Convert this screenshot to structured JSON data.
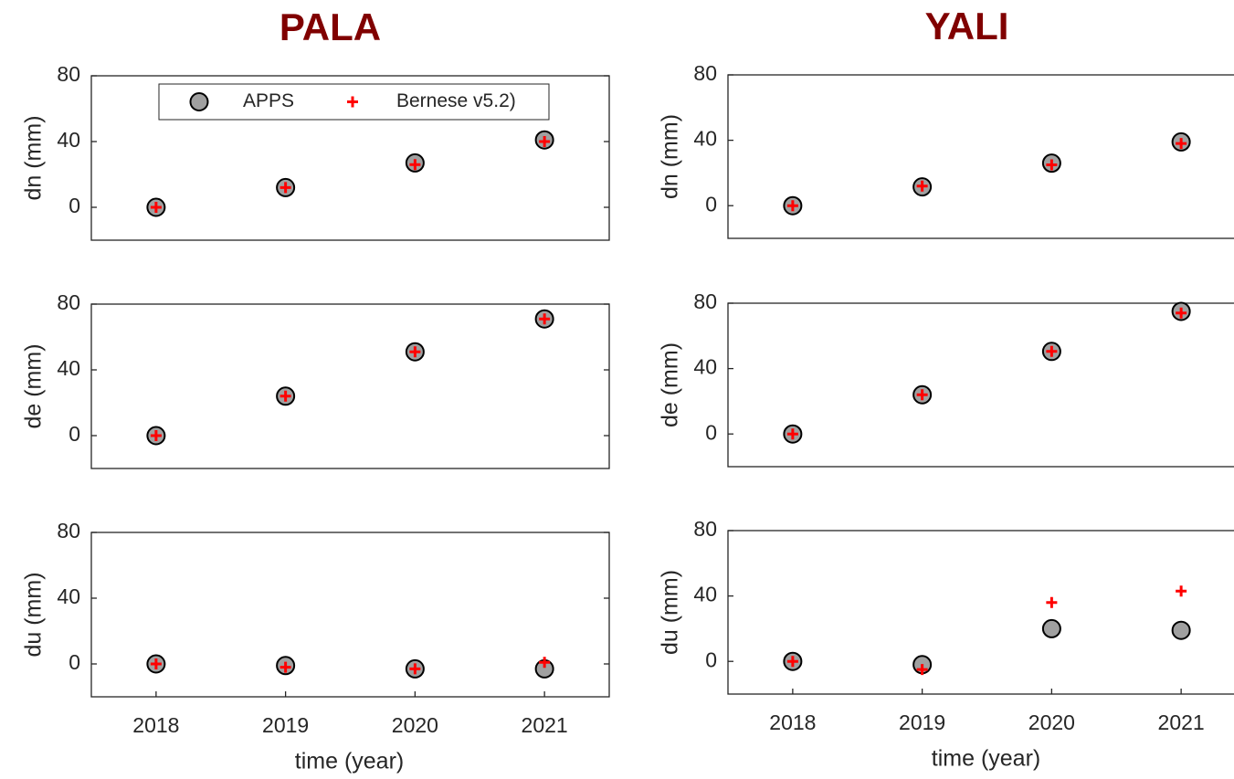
{
  "chart_data": [
    {
      "type": "scatter",
      "title": "PALA",
      "ylabel": "dn (mm)",
      "x": [
        2018,
        2019,
        2020,
        2021
      ],
      "xlim": [
        2017.5,
        2021.5
      ],
      "ylim": [
        -20,
        80
      ],
      "yticks": [
        0,
        40,
        80
      ],
      "legend": "north",
      "series": [
        {
          "name": "APPS",
          "color": "#a0a0a0",
          "values": [
            0,
            12,
            27,
            41
          ]
        },
        {
          "name": "Bernese v5.2)",
          "color": "#ff0000",
          "values": [
            0,
            12,
            26,
            40
          ]
        }
      ]
    },
    {
      "type": "scatter",
      "title": "YALI",
      "ylabel": "dn (mm)",
      "x": [
        2018,
        2019,
        2020,
        2021
      ],
      "xlim": [
        2017.5,
        2021.5
      ],
      "ylim": [
        -20,
        80
      ],
      "yticks": [
        0,
        40,
        80
      ],
      "series": [
        {
          "name": "APPS",
          "color": "#a0a0a0",
          "values": [
            0,
            11.5,
            26,
            39
          ]
        },
        {
          "name": "Bernese v5.2)",
          "color": "#ff0000",
          "values": [
            0,
            12,
            25,
            38
          ]
        }
      ]
    },
    {
      "type": "scatter",
      "ylabel": "de (mm)",
      "x": [
        2018,
        2019,
        2020,
        2021
      ],
      "xlim": [
        2017.5,
        2021.5
      ],
      "ylim": [
        -20,
        80
      ],
      "yticks": [
        0,
        40,
        80
      ],
      "series": [
        {
          "name": "APPS",
          "color": "#a0a0a0",
          "values": [
            0,
            24,
            51,
            71
          ]
        },
        {
          "name": "Bernese v5.2)",
          "color": "#ff0000",
          "values": [
            0,
            24,
            51,
            71
          ]
        }
      ]
    },
    {
      "type": "scatter",
      "ylabel": "de (mm)",
      "x": [
        2018,
        2019,
        2020,
        2021
      ],
      "xlim": [
        2017.5,
        2021.5
      ],
      "ylim": [
        -20,
        80
      ],
      "yticks": [
        0,
        40,
        80
      ],
      "series": [
        {
          "name": "APPS",
          "color": "#a0a0a0",
          "values": [
            0,
            24,
            50.5,
            75
          ]
        },
        {
          "name": "Bernese v5.2)",
          "color": "#ff0000",
          "values": [
            0,
            24,
            50.5,
            74
          ]
        }
      ]
    },
    {
      "type": "scatter",
      "ylabel": "du (mm)",
      "xlabel": "time (year)",
      "x": [
        2018,
        2019,
        2020,
        2021
      ],
      "xlim": [
        2017.5,
        2021.5
      ],
      "xticks": [
        2018,
        2019,
        2020,
        2021
      ],
      "ylim": [
        -20,
        80
      ],
      "yticks": [
        0,
        40,
        80
      ],
      "series": [
        {
          "name": "APPS",
          "color": "#a0a0a0",
          "values": [
            0,
            -1,
            -3,
            -3
          ]
        },
        {
          "name": "Bernese v5.2)",
          "color": "#ff0000",
          "values": [
            0,
            -2,
            -3,
            1
          ]
        }
      ]
    },
    {
      "type": "scatter",
      "ylabel": "du (mm)",
      "xlabel": "time (year)",
      "x": [
        2018,
        2019,
        2020,
        2021
      ],
      "xlim": [
        2017.5,
        2021.5
      ],
      "xticks": [
        2018,
        2019,
        2020,
        2021
      ],
      "ylim": [
        -20,
        80
      ],
      "yticks": [
        0,
        40,
        80
      ],
      "series": [
        {
          "name": "APPS",
          "color": "#a0a0a0",
          "values": [
            0,
            -2,
            20,
            19
          ]
        },
        {
          "name": "Bernese v5.2)",
          "color": "#ff0000",
          "values": [
            0,
            -5,
            36,
            43
          ]
        }
      ]
    }
  ]
}
